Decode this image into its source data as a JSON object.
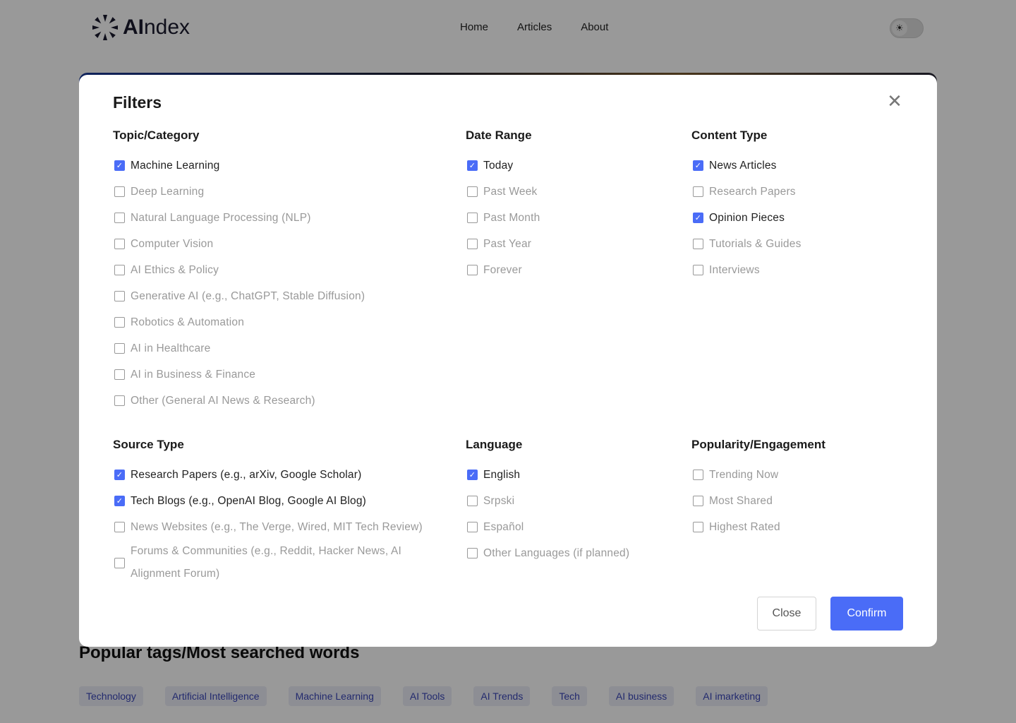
{
  "header": {
    "logo_bold": "AI",
    "logo_rest": "ndex",
    "nav": [
      "Home",
      "Articles",
      "About"
    ],
    "theme_icon": "sun-icon"
  },
  "popular": {
    "title": "Popular tags/Most searched words",
    "tags": [
      "Technology",
      "Artificial Intelligence",
      "Machine Learning",
      "AI Tools",
      "AI Trends",
      "Tech",
      "AI business",
      "AI imarketing"
    ]
  },
  "modal": {
    "title": "Filters",
    "close_icon": "close-icon",
    "accent": "#4a6cf7",
    "groups": [
      {
        "title": "Topic/Category",
        "options": [
          {
            "label": "Machine Learning",
            "checked": true
          },
          {
            "label": "Deep Learning",
            "checked": false
          },
          {
            "label": "Natural Language Processing (NLP)",
            "checked": false
          },
          {
            "label": "Computer Vision",
            "checked": false
          },
          {
            "label": "AI Ethics & Policy",
            "checked": false
          },
          {
            "label": "Generative AI (e.g., ChatGPT, Stable Diffusion)",
            "checked": false
          },
          {
            "label": "Robotics & Automation",
            "checked": false
          },
          {
            "label": "AI in Healthcare",
            "checked": false
          },
          {
            "label": "AI in Business & Finance",
            "checked": false
          },
          {
            "label": "Other (General AI News & Research)",
            "checked": false
          }
        ]
      },
      {
        "title": "Date Range",
        "options": [
          {
            "label": "Today",
            "checked": true
          },
          {
            "label": "Past Week",
            "checked": false
          },
          {
            "label": "Past Month",
            "checked": false
          },
          {
            "label": "Past Year",
            "checked": false
          },
          {
            "label": "Forever",
            "checked": false
          }
        ]
      },
      {
        "title": "Content Type",
        "options": [
          {
            "label": "News Articles",
            "checked": true
          },
          {
            "label": "Research Papers",
            "checked": false
          },
          {
            "label": "Opinion Pieces",
            "checked": true
          },
          {
            "label": "Tutorials & Guides",
            "checked": false
          },
          {
            "label": "Interviews",
            "checked": false
          }
        ]
      },
      {
        "title": "Source Type",
        "options": [
          {
            "label": "Research Papers (e.g., arXiv, Google Scholar)",
            "checked": true
          },
          {
            "label": "Tech Blogs (e.g., OpenAI Blog, Google AI Blog)",
            "checked": true
          },
          {
            "label": "News Websites (e.g., The Verge, Wired, MIT Tech Review)",
            "checked": false
          },
          {
            "label": "Forums & Communities (e.g., Reddit, Hacker News, AI Alignment Forum)",
            "checked": false
          }
        ]
      },
      {
        "title": "Language",
        "options": [
          {
            "label": "English",
            "checked": true
          },
          {
            "label": "Srpski",
            "checked": false
          },
          {
            "label": "Español",
            "checked": false
          },
          {
            "label": "Other Languages (if planned)",
            "checked": false
          }
        ]
      },
      {
        "title": "Popularity/Engagement",
        "options": [
          {
            "label": "Trending Now",
            "checked": false
          },
          {
            "label": "Most Shared",
            "checked": false
          },
          {
            "label": "Highest Rated",
            "checked": false
          }
        ]
      }
    ],
    "close_label": "Close",
    "confirm_label": "Confirm"
  }
}
